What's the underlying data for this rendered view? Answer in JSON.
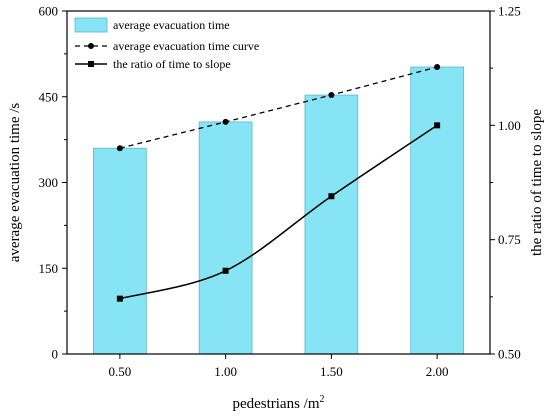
{
  "chart_data": {
    "type": "bar+line",
    "categories": [
      "0.50",
      "1.00",
      "1.50",
      "2.00"
    ],
    "x": [
      0.5,
      1.0,
      1.5,
      2.0
    ],
    "xlabel": "pedestrians /m",
    "xlabel_sup": "2",
    "ylabel_left": "average evacuation time /s",
    "ylabel_right": "the ratio of time to slope",
    "ylim_left": [
      0,
      600
    ],
    "ylim_right": [
      0.5,
      1.25
    ],
    "yticks_left": [
      "0",
      "150",
      "300",
      "450",
      "600"
    ],
    "yticks_right": [
      "0.50",
      "0.75",
      "1.00",
      "1.25"
    ],
    "grid": false,
    "legend_position": "top-left",
    "series": [
      {
        "name": "average evacuation time",
        "type": "bar",
        "axis": "left",
        "color": "#87e4f5",
        "values": [
          360,
          406,
          453,
          502
        ]
      },
      {
        "name": "average evacuation time curve",
        "type": "line-dashed",
        "axis": "left",
        "color": "#000000",
        "marker": "circle",
        "values": [
          360,
          406,
          453,
          502
        ]
      },
      {
        "name": "the ratio of time to slope",
        "type": "line",
        "axis": "right",
        "color": "#000000",
        "marker": "square",
        "values": [
          0.621,
          0.682,
          0.845,
          1.0
        ]
      }
    ]
  }
}
